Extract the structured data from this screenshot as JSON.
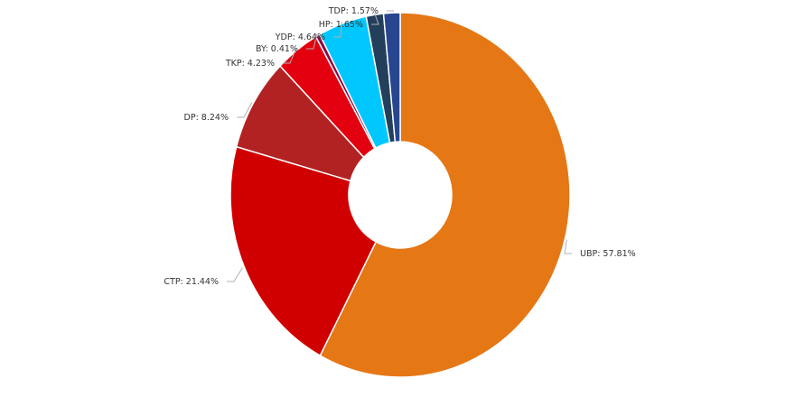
{
  "chart_data": {
    "type": "pie",
    "variant": "donut",
    "title": "",
    "slices": [
      {
        "name": "UBP",
        "value": 57.81,
        "label": "UBP: 57.81%",
        "color": "#E57715"
      },
      {
        "name": "CTP",
        "value": 21.44,
        "label": "CTP: 21.44%",
        "color": "#D10000"
      },
      {
        "name": "DP",
        "value": 8.24,
        "label": "DP: 8.24%",
        "color": "#B32222"
      },
      {
        "name": "TKP",
        "value": 4.23,
        "label": "TKP: 4.23%",
        "color": "#E3000F"
      },
      {
        "name": "BY",
        "value": 0.41,
        "label": "BY: 0.41%",
        "color": "#8A0A46"
      },
      {
        "name": "YDP",
        "value": 4.64,
        "label": "YDP: 4.64%",
        "color": "#00C8FF"
      },
      {
        "name": "HP",
        "value": 1.65,
        "label": "HP: 1.65%",
        "color": "#233F5C"
      },
      {
        "name": "TDP",
        "value": 1.57,
        "label": "TDP: 1.57%",
        "color": "#27468F"
      }
    ],
    "unit": "%",
    "start": "top",
    "direction": "clockwise"
  }
}
